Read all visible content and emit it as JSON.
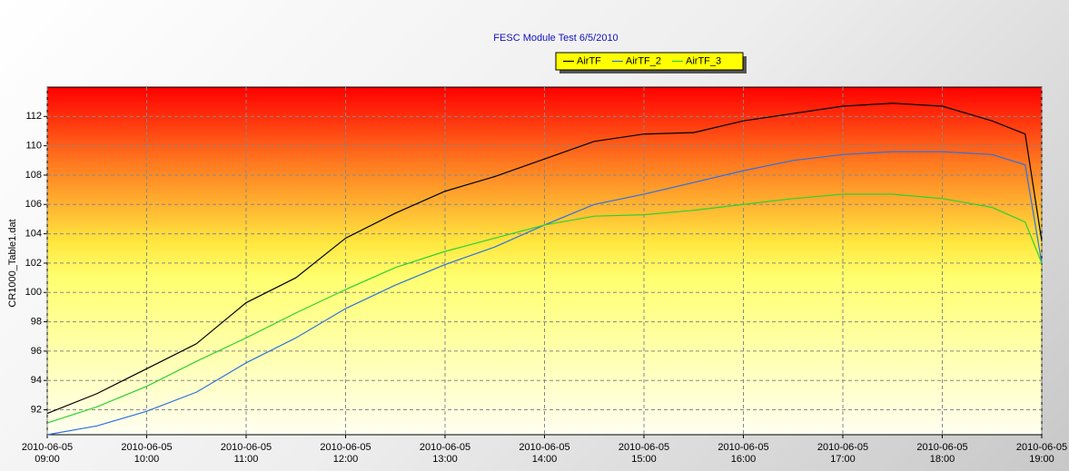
{
  "chart_data": {
    "type": "line",
    "title": "FESC Module Test  6/5/2010",
    "y_label": "CR1000_Table1.dat",
    "legend": "top",
    "grid": true,
    "x": [
      "2010-06-05 09:00",
      "2010-06-05 09:30",
      "2010-06-05 10:00",
      "2010-06-05 10:30",
      "2010-06-05 11:00",
      "2010-06-05 11:30",
      "2010-06-05 12:00",
      "2010-06-05 12:30",
      "2010-06-05 13:00",
      "2010-06-05 13:30",
      "2010-06-05 14:00",
      "2010-06-05 14:30",
      "2010-06-05 15:00",
      "2010-06-05 15:30",
      "2010-06-05 16:00",
      "2010-06-05 16:30",
      "2010-06-05 17:00",
      "2010-06-05 17:30",
      "2010-06-05 18:00",
      "2010-06-05 18:30",
      "2010-06-05 18:50",
      "2010-06-05 19:00"
    ],
    "series": [
      {
        "name": "AirTF",
        "color": "#000000",
        "values": [
          91.75,
          93.1,
          94.8,
          96.5,
          99.3,
          101.0,
          103.7,
          105.4,
          106.9,
          107.9,
          109.1,
          110.3,
          110.8,
          110.9,
          111.7,
          112.2,
          112.7,
          112.9,
          112.7,
          111.7,
          110.8,
          103.5
        ]
      },
      {
        "name": "AirTF_2",
        "color": "#3070e0",
        "values": [
          90.3,
          90.9,
          91.9,
          93.2,
          95.2,
          96.9,
          98.9,
          100.5,
          101.9,
          103.1,
          104.6,
          106.0,
          106.7,
          107.5,
          108.3,
          109.0,
          109.4,
          109.6,
          109.6,
          109.4,
          108.7,
          102.0
        ]
      },
      {
        "name": "AirTF_3",
        "color": "#30d030",
        "values": [
          91.1,
          92.2,
          93.6,
          95.3,
          96.9,
          98.6,
          100.2,
          101.7,
          102.8,
          103.7,
          104.6,
          105.2,
          105.3,
          105.6,
          106.0,
          106.4,
          106.7,
          106.7,
          106.4,
          105.8,
          104.8,
          102.0
        ]
      }
    ],
    "xlim": [
      "2010-06-05 09:00",
      "2010-06-05 19:00"
    ],
    "xticks": [
      "2010-06-05 09:00",
      "2010-06-05 10:00",
      "2010-06-05 11:00",
      "2010-06-05 12:00",
      "2010-06-05 13:00",
      "2010-06-05 14:00",
      "2010-06-05 15:00",
      "2010-06-05 16:00",
      "2010-06-05 17:00",
      "2010-06-05 18:00",
      "2010-06-05 19:00"
    ],
    "ylim": [
      90.3,
      114
    ],
    "yticks": [
      92,
      94,
      96,
      98,
      100,
      102,
      104,
      106,
      108,
      110,
      112
    ]
  }
}
